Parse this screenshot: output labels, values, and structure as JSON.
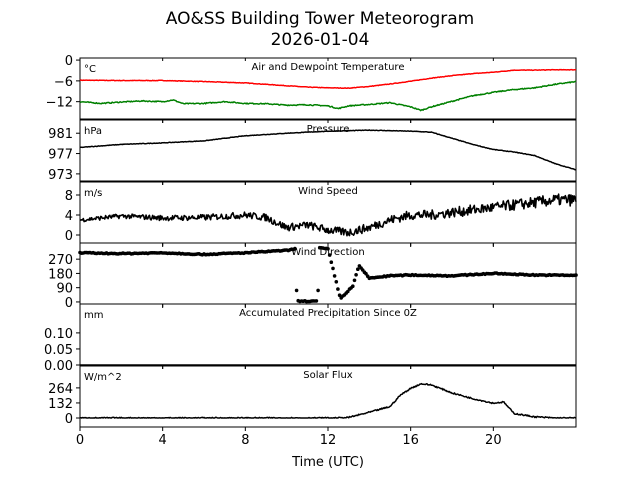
{
  "chart_data": {
    "type": "line",
    "title": "AO&SS Building Tower Meteorogram",
    "subtitle": "2026-01-04",
    "xlabel": "Time (UTC)",
    "xlim": [
      0,
      24
    ],
    "xticks": [
      0,
      4,
      8,
      12,
      16,
      20
    ],
    "panels": [
      {
        "title": "Air and Dewpoint Temperature",
        "unit": "°C",
        "ylim": [
          -17,
          0.6
        ],
        "yticks": [
          0,
          -6,
          -12
        ],
        "ytick_labels": [
          "0",
          "−6",
          "−12"
        ],
        "series": [
          {
            "name": "Air Temperature",
            "color": "#ff0000",
            "noise": 0.15,
            "x": [
              0,
              2,
              4,
              6,
              8,
              10,
              11,
              12,
              13,
              14,
              15,
              16,
              17,
              18,
              19,
              20,
              21,
              22,
              23,
              24
            ],
            "y": [
              -5.8,
              -5.9,
              -5.9,
              -6.2,
              -6.6,
              -7.4,
              -7.8,
              -8.0,
              -8.1,
              -7.6,
              -6.9,
              -6.1,
              -5.2,
              -4.5,
              -3.9,
              -3.5,
              -2.9,
              -2.9,
              -2.8,
              -2.8
            ]
          },
          {
            "name": "Dewpoint",
            "color": "#008000",
            "noise": 0.3,
            "x": [
              0,
              1,
              2,
              3,
              4,
              4.5,
              5,
              6,
              7,
              8,
              9,
              10,
              11,
              12,
              12.5,
              13,
              14,
              15,
              16,
              16.5,
              17,
              18,
              19,
              20,
              21,
              22,
              23,
              24
            ],
            "y": [
              -12,
              -12.5,
              -12.1,
              -11.8,
              -12,
              -11.5,
              -12.6,
              -12.5,
              -12,
              -12.5,
              -12.6,
              -13,
              -12.9,
              -13.2,
              -14,
              -13.2,
              -12.8,
              -12.3,
              -13.5,
              -14.5,
              -13.5,
              -11.9,
              -10.3,
              -9.3,
              -8.5,
              -8,
              -7,
              -6.2
            ]
          }
        ]
      },
      {
        "title": "Pressure",
        "unit": "hPa",
        "ylim": [
          971.6,
          983.6
        ],
        "yticks": [
          981,
          977,
          973
        ],
        "ytick_labels": [
          "981",
          "977",
          "973"
        ],
        "series": [
          {
            "name": "Pressure",
            "color": "#000000",
            "noise": 0.1,
            "x": [
              0,
              2,
              4,
              6,
              8,
              10,
              12,
              14,
              16,
              17,
              18,
              19,
              20,
              21,
              22,
              23,
              24
            ],
            "y": [
              978.2,
              978.8,
              979.1,
              979.5,
              980.5,
              981,
              981.4,
              981.6,
              981.4,
              981.2,
              980.0,
              978.8,
              977.8,
              977.3,
              976.6,
              975.0,
              973.8
            ]
          }
        ]
      },
      {
        "title": "Wind Speed",
        "unit": "m/s",
        "ylim": [
          -1.6,
          10.6
        ],
        "yticks": [
          8,
          4,
          0
        ],
        "ytick_labels": [
          "8",
          "4",
          "0"
        ],
        "series": [
          {
            "name": "Wind Speed",
            "color": "#000000",
            "noise": 0.8,
            "x": [
              0,
              2,
              4,
              6,
              8,
              9,
              10,
              11,
              12,
              13,
              14,
              15,
              16,
              17,
              18,
              19,
              20,
              21,
              22,
              23,
              24
            ],
            "y": [
              3,
              3.8,
              3.4,
              3.5,
              4,
              3.5,
              1.5,
              2,
              1,
              0.5,
              1.5,
              3,
              4,
              4,
              4.5,
              5,
              5.5,
              6,
              6.5,
              7,
              7
            ]
          }
        ]
      },
      {
        "title": "Wind Direction",
        "unit": "",
        "ylim": [
          -13,
          372
        ],
        "yticks": [
          270,
          180,
          90,
          0
        ],
        "ytick_labels": [
          "270",
          "180",
          "90",
          "0"
        ],
        "markers": true,
        "series": [
          {
            "name": "Wind Direction",
            "color": "#000000",
            "noise": 6,
            "x": [
              0,
              2,
              4,
              6,
              8,
              9,
              10,
              10.4,
              10.5,
              11.5,
              11.6,
              12,
              12.6,
              12.9,
              13.2,
              13.5,
              14,
              15,
              16,
              18,
              20,
              22,
              24
            ],
            "y": [
              310,
              305,
              310,
              300,
              310,
              318,
              325,
              335,
              5,
              5,
              340,
              335,
              20,
              60,
              100,
              230,
              150,
              165,
              170,
              165,
              180,
              170,
              168
            ]
          }
        ]
      },
      {
        "title": "Accumulated Precipitation Since 0Z",
        "unit": "mm",
        "ylim": [
          0,
          0.19
        ],
        "yticks": [
          0.1,
          0.05,
          0.0
        ],
        "ytick_labels": [
          "0.10",
          "0.05",
          "0.00"
        ],
        "series": [
          {
            "name": "Precipitation",
            "color": "#000000",
            "noise": 0,
            "x": [
              0,
              24
            ],
            "y": [
              0,
              0
            ]
          }
        ]
      },
      {
        "title": "Solar Flux",
        "unit": "W/m^2",
        "ylim": [
          -79,
          456
        ],
        "yticks": [
          264,
          132,
          0
        ],
        "ytick_labels": [
          "264",
          "132",
          "0"
        ],
        "series": [
          {
            "name": "Solar Flux",
            "color": "#000000",
            "noise": 12,
            "x": [
              0,
              12.5,
              13,
              14,
              15,
              15.5,
              16,
              16.5,
              17,
              18,
              19,
              20,
              20.5,
              21,
              22,
              23,
              24
            ],
            "y": [
              0,
              0,
              5,
              50,
              100,
              200,
              260,
              300,
              290,
              220,
              170,
              130,
              140,
              40,
              10,
              0,
              0
            ]
          }
        ]
      }
    ]
  }
}
